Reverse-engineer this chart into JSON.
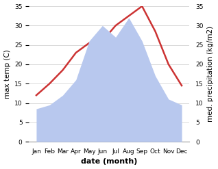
{
  "months": [
    "Jan",
    "Feb",
    "Mar",
    "Apr",
    "May",
    "Jun",
    "Jul",
    "Aug",
    "Sep",
    "Oct",
    "Nov",
    "Dec"
  ],
  "max_temp": [
    12.0,
    15.0,
    18.5,
    23.0,
    25.5,
    26.0,
    30.0,
    32.5,
    35.0,
    28.5,
    20.0,
    14.5
  ],
  "precipitation": [
    8.5,
    9.5,
    12.0,
    16.0,
    26.0,
    30.0,
    27.0,
    32.0,
    26.0,
    17.0,
    11.0,
    9.5
  ],
  "temp_color": "#cc3333",
  "precip_color": "#b8c8ee",
  "ylim": [
    0,
    35
  ],
  "xlabel": "date (month)",
  "ylabel_left": "max temp (C)",
  "ylabel_right": "med. precipitation (kg/m2)",
  "yticks": [
    0,
    5,
    10,
    15,
    20,
    25,
    30,
    35
  ],
  "background_color": "#ffffff",
  "grid_color": "#cccccc"
}
